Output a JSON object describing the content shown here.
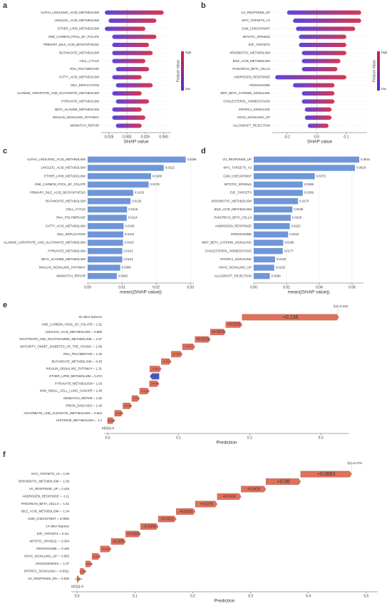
{
  "chart_data": [
    {
      "type": "beeswarm",
      "panel": "a",
      "x_label": "SHAP value",
      "categories": [
        "ALPHA_LINOLENIC_ACID_METABOLISM",
        "LINOLEIC_ACID_METABOLISM",
        "ETHER_LIPID_METABOLISM",
        "ONE_CARBON_POOL_BY_FOLATE",
        "PRIMARY_BILE_ACID_BIOSYNTHESIS",
        "BUTANOATE_METABOLISM",
        "CELL_CYCLE",
        "RNA_POLYMERASE",
        "FATTY_ACID_METABOLISM",
        "DNA_REPLICATION",
        "ALANINE_ASPARTATE_AND_GLUTAMATE_METABOLISM",
        "PYRUVATE_METABOLISM",
        "BETA_ALANINE_METABOLISM",
        "INSULIN_SIGNALING_PATHWAY",
        "MISMATCH_REPAIR"
      ],
      "ranges": [
        [
          -0.03,
          0.05
        ],
        [
          -0.025,
          0.04
        ],
        [
          -0.03,
          0.025
        ],
        [
          -0.02,
          0.04
        ],
        [
          -0.02,
          0.03
        ],
        [
          -0.02,
          0.035
        ],
        [
          -0.02,
          0.025
        ],
        [
          -0.015,
          0.03
        ],
        [
          -0.02,
          0.02
        ],
        [
          -0.015,
          0.035
        ],
        [
          -0.02,
          0.02
        ],
        [
          -0.015,
          0.03
        ],
        [
          -0.02,
          0.02
        ],
        [
          -0.02,
          0.025
        ],
        [
          -0.015,
          0.02
        ]
      ],
      "xlim": [
        -0.035,
        0.06
      ],
      "xticks": [
        -0.025,
        {
          "value": 0,
          "label": "0.000"
        },
        0.025,
        {
          "value": 0.05,
          "label": "0.050"
        }
      ],
      "colors": {
        "low": "#4b2fd8",
        "high": "#d6203c"
      },
      "colorbar": {
        "title": "Feature Value",
        "high": "high",
        "low": "low"
      }
    },
    {
      "type": "beeswarm",
      "panel": "b",
      "x_label": "SHAP value",
      "categories": [
        "UV_RESPONSE_UP",
        "MYC_TARGETS_V2",
        "G2M_CHECKPOINT",
        "MITOTIC_SPINDLE",
        "E2F_TARGETS",
        "XENOBIOTIC_METABOLISM",
        "BILE_ACID_METABOLISM",
        "PANCREAS_BETA_CELLS",
        "ANDROGEN_RESPONSE",
        "PEROXISOME",
        "WNT_BETA_CATENIN_SIGNALING",
        "CHOLESTEROL_HOMEOSTASIS",
        "MTORC1_SIGNALING",
        "KRAS_SIGNALING_UP",
        "ALLOGRAFT_REJECTION"
      ],
      "ranges": [
        [
          -0.1,
          0.15
        ],
        [
          -0.08,
          0.15
        ],
        [
          -0.07,
          0.13
        ],
        [
          -0.06,
          0.1
        ],
        [
          -0.06,
          0.1
        ],
        [
          -0.05,
          0.1
        ],
        [
          -0.05,
          0.08
        ],
        [
          -0.05,
          0.07
        ],
        [
          -0.14,
          0.1
        ],
        [
          -0.08,
          0.06
        ],
        [
          -0.05,
          0.06
        ],
        [
          -0.05,
          0.06
        ],
        [
          -0.04,
          0.05
        ],
        [
          -0.04,
          0.05
        ],
        [
          -0.03,
          0.04
        ]
      ],
      "xlim": [
        -0.15,
        0.17
      ],
      "xticks": [
        -0.1,
        {
          "value": 0,
          "label": "0.0"
        },
        0.1
      ],
      "colors": {
        "low": "#4b2fd8",
        "high": "#d6203c"
      },
      "colorbar": {
        "title": "Feature Value",
        "high": "high",
        "low": "low"
      }
    },
    {
      "type": "barh",
      "panel": "c",
      "x_label": "mean(|SHAP value|)",
      "color": "#6f96d6",
      "grid": true,
      "categories": [
        "ALPHA_LINOLENIC_ACID_METABOLISM",
        "LINOLEIC_ACID_METABOLISM",
        "ETHER_LIPID_METABOLISM",
        "ONE_CARBON_POOL_BY_FOLATE",
        "PRIMARY_BILE_ACID_BIOSYNTHESIS",
        "BUTANOATE_METABOLISM",
        "CELL_CYCLE",
        "RNA_POLYMERASE",
        "FATTY_ACID_METABOLISM",
        "DNA_REPLICATION",
        "ALANINE_ASPARTATE_AND_GLUTAMATE_METABOLISM",
        "PYRUVATE_METABOLISM",
        "BETA_ALANINE_METABOLISM",
        "INSULIN_SIGNALING_PATHWAY",
        "MISMATCH_REPAIR"
      ],
      "values": [
        0.0286,
        0.0222,
        0.0185,
        0.0178,
        0.0133,
        0.0125,
        0.0115,
        0.0114,
        0.0105,
        0.0104,
        0.0103,
        0.0101,
        0.0101,
        0.0095,
        0.0085
      ],
      "value_labels": [
        "0.0286",
        "0.0222",
        "0.0185",
        "0.0178",
        "0.0133",
        "0.0125",
        "0.0115",
        "0.0114",
        "0.0105",
        "0.0104",
        "0.0103",
        "0.0101",
        "0.0101",
        "0.0095",
        "0.0085"
      ],
      "xlim": [
        0,
        0.031
      ],
      "xticks": [
        {
          "value": 0,
          "label": "0.00"
        },
        0.01,
        0.02,
        0.03
      ]
    },
    {
      "type": "barh",
      "panel": "d",
      "x_label": "mean(|SHAP value|)",
      "color": "#6f96d6",
      "grid": true,
      "categories": [
        "UV_RESPONSE_UP",
        "MYC_TARGETS_V2",
        "G2M_CHECKPOINT",
        "MITOTIC_SPINDLE",
        "E2F_TARGETS",
        "XENOBIOTIC_METABOLISM",
        "BILE_ACID_METABOLISM",
        "PANCREAS_BETA_CELLS",
        "ANDROGEN_RESPONSE",
        "PEROXISOME",
        "WNT_BETA_CATENIN_SIGNALING",
        "CHOLESTEROL_HOMEOSTASIS",
        "MTORC1_SIGNALING",
        "KRAS_SIGNALING_UP",
        "ALLOGRAFT_REJECTION"
      ],
      "values": [
        0.0644,
        0.0618,
        0.0373,
        0.0299,
        0.0299,
        0.027,
        0.0236,
        0.0226,
        0.022,
        0.021,
        0.018,
        0.0177,
        0.013,
        0.0125,
        0.0098
      ],
      "value_labels": [
        "0.0644",
        "0.0618",
        "0.0373",
        "0.0299",
        "0.0299",
        "0.0270",
        "0.0236",
        "0.0226",
        "0.0220",
        "0.0210",
        "0.0180",
        "0.0177",
        "0.0130",
        "0.0125",
        "0.0098"
      ],
      "xlim": [
        0,
        0.067
      ],
      "xticks": [
        {
          "value": 0,
          "label": "0.00"
        },
        0.02,
        0.04,
        0.06
      ]
    },
    {
      "type": "waterfall",
      "panel": "e",
      "x_label": "Prediction",
      "fx": 0.324,
      "fx_label": "f(x)=0.324",
      "base": 0,
      "base_label": "E[f(x)]=0",
      "categories": [
        "62 other features",
        "ONE_CARBON_POOL_BY_FOLATE = 1.52",
        "LINOLEIC_ACID_METABOLISM = -0.886",
        "NICOTINATE_AND_NICOTINAMIDE_METABOLISM = -1.67",
        "MATURITY_ONSET_DIABETES_OF_THE_YOUNG = -1.59",
        "RNA_POLYMERASE = 1.45",
        "BUTANOATE_METABOLISM = -0.45",
        "INSULIN_SIGNALING_PATHWAY = 1.31",
        "ETHER_LIPID_METABOLISM = 0.372",
        "PYRUVATE_METABOLISM = 1.03",
        "NON_SMALL_CELL_LUNG_CANCER = 1.48",
        "MISMATCH_REPAIR = 1.66",
        "PRION_DISEASES = 1.49",
        "ASCORBATE_AND_ALDARATE_METABOLISM = -0.663",
        "HISTIDINE_METABOLISM = -1.2"
      ],
      "values": [
        0.136,
        0.0232,
        0.0216,
        0.0216,
        0.0177,
        0.0157,
        0.014,
        0.0161,
        -0.013,
        0.0136,
        0.0138,
        0.011,
        0.0125,
        0.0118,
        0.0098
      ],
      "value_labels": [
        "+0.136",
        "+0.0232",
        "+0.0216",
        "+0.0216",
        "+0.0177",
        "+0.0157",
        "+0.014",
        "+0.0161",
        "-0.013",
        "+0.0136",
        "+0.0138",
        "+0.011",
        "+0.0125",
        "+0.0118",
        "+0.0098"
      ],
      "colors": {
        "positive": "#e0705a",
        "negative": "#4a5cc4"
      },
      "xlim": [
        -0.005,
        0.34
      ],
      "xticks": [
        {
          "value": 0,
          "label": "0.0"
        },
        0.1,
        0.2,
        0.3
      ]
    },
    {
      "type": "waterfall",
      "panel": "f",
      "x_label": "Prediction",
      "fx": 0.475,
      "fx_label": "f(x)=0.475",
      "base": 0,
      "base_label": "E[f(x)]=0",
      "categories": [
        "MYC_TARGETS_V2 = 1.06",
        "XENOBIOTIC_METABOLISM = -1.08",
        "UV_RESPONSE_UP = 0.426",
        "ANDROGEN_RESPONSE = -1.11",
        "PANCREAS_BETA_CELLS = -1.61",
        "BILE_ACID_METABOLISM = -1.04",
        "G2M_CHECKPOINT = 0.0965",
        "14 other features",
        "E2F_TARGETS = 0.111",
        "MITOTIC_SPINDLE = -0.344",
        "PEROXISOME = -0.165",
        "KRAS_SIGNALING_UP = -0.953",
        "ANGIOGENESIS = -1.07",
        "MTORC1_SIGNALING = -0.0311",
        "UV_RESPONSE_DN = -0.506"
      ],
      "values": [
        0.0883,
        0.06,
        0.0429,
        0.0414,
        0.0379,
        0.0329,
        0.0311,
        0.0306,
        0.0259,
        0.025,
        0.0187,
        0.0143,
        0.0112,
        0.0095,
        0.0053
      ],
      "value_labels": [
        "+0.0883",
        "+0.06",
        "+0.0429",
        "+0.0414",
        "+0.0379",
        "+0.0329",
        "+0.0311",
        "+0.0306",
        "+0.0259",
        "+0.025",
        "+0.0187",
        "+0.0143",
        "+0.0112",
        "+0.0095",
        "+0.0053"
      ],
      "colors": {
        "positive": "#e0705a",
        "negative": "#4a5cc4"
      },
      "xlim": [
        -0.01,
        0.52
      ],
      "xticks": [
        {
          "value": 0,
          "label": "0.0"
        },
        0.1,
        0.2,
        0.3,
        0.4,
        0.5
      ]
    }
  ]
}
